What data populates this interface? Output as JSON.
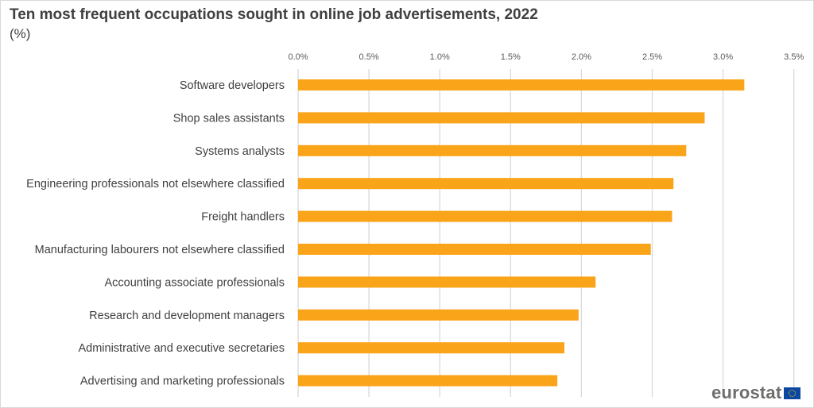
{
  "chart_data": {
    "type": "bar",
    "orientation": "horizontal",
    "title": "Ten most frequent occupations sought in online job advertisements, 2022",
    "subtitle": "(%)",
    "categories": [
      "Software developers",
      "Shop sales assistants",
      "Systems analysts",
      "Engineering professionals not elsewhere classified",
      "Freight handlers",
      "Manufacturing labourers not elsewhere classified",
      "Accounting associate professionals",
      "Research and development managers",
      "Administrative and executive secretaries",
      "Advertising and marketing professionals"
    ],
    "values": [
      3.15,
      2.87,
      2.74,
      2.65,
      2.64,
      2.49,
      2.1,
      1.98,
      1.88,
      1.83
    ],
    "xlim": [
      0,
      3.5
    ],
    "xticks": [
      0,
      0.5,
      1.0,
      1.5,
      2.0,
      2.5,
      3.0,
      3.5
    ],
    "xtick_labels": [
      "0.0%",
      "0.5%",
      "1.0%",
      "1.5%",
      "2.0%",
      "2.5%",
      "3.0%",
      "3.5%"
    ],
    "xlabel": "",
    "ylabel": "",
    "grid": "vertical",
    "bar_color": "#faa41a",
    "tick_axis_position": "top"
  },
  "logo": {
    "text": "eurostat"
  }
}
